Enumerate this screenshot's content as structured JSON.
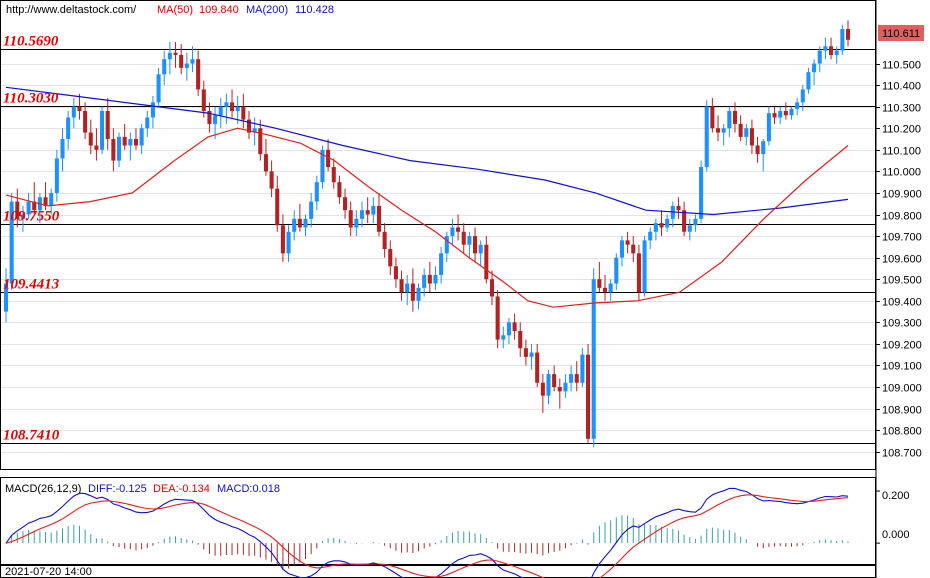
{
  "header": {
    "url": "http://www.deltastock.com/",
    "ma50_label": "MA(50)",
    "ma50_value": "109.840",
    "ma200_label": "MA(200)",
    "ma200_value": "110.428"
  },
  "macd_header": {
    "label": "MACD(26,12,9)",
    "diff": "DIFF:-0.125",
    "dea": "DEA:-0.134",
    "macd": "MACD:0.018"
  },
  "colors": {
    "up": "#1e90ff",
    "down": "#b22222",
    "ma50": "#e02020",
    "ma200": "#1010d0",
    "level": "#e00000",
    "price_badge": "#e06060"
  },
  "timestamp": "2021-07-20 14:00",
  "chart_data": {
    "type": "candlestick",
    "price_axis": {
      "ylim": [
        108.62,
        110.79
      ],
      "ticks": [
        "110.500",
        "110.400",
        "110.300",
        "110.200",
        "110.100",
        "110.000",
        "109.900",
        "109.800",
        "109.700",
        "109.600",
        "109.500",
        "109.400",
        "109.300",
        "109.200",
        "109.100",
        "109.000",
        "108.900",
        "108.800",
        "108.700"
      ]
    },
    "current_price": "110.611",
    "levels": [
      "110.5690",
      "110.3030",
      "109.7550",
      "109.4413",
      "108.7410"
    ],
    "candles": [
      [
        109.35,
        109.55,
        109.3,
        109.48
      ],
      [
        109.48,
        109.9,
        109.45,
        109.86
      ],
      [
        109.86,
        109.92,
        109.74,
        109.78
      ],
      [
        109.78,
        109.84,
        109.72,
        109.8
      ],
      [
        109.8,
        109.9,
        109.78,
        109.86
      ],
      [
        109.86,
        109.95,
        109.8,
        109.82
      ],
      [
        109.82,
        109.9,
        109.76,
        109.88
      ],
      [
        109.88,
        109.95,
        109.82,
        109.84
      ],
      [
        109.84,
        109.92,
        109.8,
        109.9
      ],
      [
        109.9,
        110.1,
        109.86,
        110.06
      ],
      [
        110.06,
        110.2,
        110.0,
        110.15
      ],
      [
        110.15,
        110.28,
        110.1,
        110.25
      ],
      [
        110.25,
        110.34,
        110.2,
        110.3
      ],
      [
        110.3,
        110.36,
        110.24,
        110.28
      ],
      [
        110.28,
        110.32,
        110.15,
        110.18
      ],
      [
        110.18,
        110.24,
        110.08,
        110.12
      ],
      [
        110.12,
        110.2,
        110.05,
        110.1
      ],
      [
        110.1,
        110.3,
        110.08,
        110.28
      ],
      [
        110.28,
        110.34,
        110.1,
        110.15
      ],
      [
        110.15,
        110.2,
        110.0,
        110.05
      ],
      [
        110.05,
        110.18,
        110.02,
        110.16
      ],
      [
        110.16,
        110.22,
        110.1,
        110.12
      ],
      [
        110.12,
        110.18,
        110.05,
        110.15
      ],
      [
        110.15,
        110.2,
        110.1,
        110.12
      ],
      [
        110.12,
        110.22,
        110.08,
        110.2
      ],
      [
        110.2,
        110.28,
        110.16,
        110.25
      ],
      [
        110.25,
        110.35,
        110.2,
        110.32
      ],
      [
        110.32,
        110.48,
        110.3,
        110.45
      ],
      [
        110.45,
        110.56,
        110.4,
        110.52
      ],
      [
        110.52,
        110.6,
        110.45,
        110.55
      ],
      [
        110.55,
        110.6,
        110.48,
        110.54
      ],
      [
        110.54,
        110.59,
        110.45,
        110.48
      ],
      [
        110.48,
        110.55,
        110.42,
        110.5
      ],
      [
        110.5,
        110.58,
        110.46,
        110.52
      ],
      [
        110.52,
        110.56,
        110.35,
        110.38
      ],
      [
        110.38,
        110.42,
        110.25,
        110.28
      ],
      [
        110.28,
        110.32,
        110.18,
        110.22
      ],
      [
        110.22,
        110.3,
        110.15,
        110.26
      ],
      [
        110.26,
        110.34,
        110.2,
        110.3
      ],
      [
        110.3,
        110.36,
        110.22,
        110.32
      ],
      [
        110.32,
        110.38,
        110.25,
        110.28
      ],
      [
        110.28,
        110.35,
        110.22,
        110.3
      ],
      [
        110.3,
        110.36,
        110.2,
        110.24
      ],
      [
        110.24,
        110.28,
        110.15,
        110.18
      ],
      [
        110.18,
        110.25,
        110.12,
        110.2
      ],
      [
        110.2,
        110.24,
        110.05,
        110.08
      ],
      [
        110.08,
        110.15,
        109.98,
        110.0
      ],
      [
        110.0,
        110.05,
        109.88,
        109.92
      ],
      [
        109.92,
        109.98,
        109.72,
        109.75
      ],
      [
        109.75,
        109.8,
        109.58,
        109.62
      ],
      [
        109.62,
        109.75,
        109.58,
        109.72
      ],
      [
        109.72,
        109.82,
        109.68,
        109.78
      ],
      [
        109.78,
        109.85,
        109.72,
        109.74
      ],
      [
        109.74,
        109.8,
        109.7,
        109.78
      ],
      [
        109.78,
        109.9,
        109.74,
        109.86
      ],
      [
        109.86,
        109.98,
        109.82,
        109.95
      ],
      [
        109.95,
        110.12,
        109.92,
        110.1
      ],
      [
        110.1,
        110.15,
        110.0,
        110.02
      ],
      [
        110.02,
        110.06,
        109.92,
        109.95
      ],
      [
        109.95,
        109.98,
        109.85,
        109.88
      ],
      [
        109.88,
        109.92,
        109.78,
        109.82
      ],
      [
        109.82,
        109.86,
        109.7,
        109.74
      ],
      [
        109.74,
        109.82,
        109.7,
        109.78
      ],
      [
        109.78,
        109.86,
        109.74,
        109.82
      ],
      [
        109.82,
        109.88,
        109.76,
        109.8
      ],
      [
        109.8,
        109.88,
        109.76,
        109.84
      ],
      [
        109.84,
        109.9,
        109.7,
        109.72
      ],
      [
        109.72,
        109.76,
        109.6,
        109.64
      ],
      [
        109.64,
        109.68,
        109.52,
        109.56
      ],
      [
        109.56,
        109.6,
        109.46,
        109.5
      ],
      [
        109.5,
        109.54,
        109.4,
        109.44
      ],
      [
        109.44,
        109.52,
        109.38,
        109.48
      ],
      [
        109.48,
        109.55,
        109.35,
        109.4
      ],
      [
        109.4,
        109.48,
        109.36,
        109.46
      ],
      [
        109.46,
        109.55,
        109.42,
        109.52
      ],
      [
        109.52,
        109.58,
        109.44,
        109.48
      ],
      [
        109.48,
        109.56,
        109.45,
        109.52
      ],
      [
        109.52,
        109.65,
        109.48,
        109.62
      ],
      [
        109.62,
        109.72,
        109.58,
        109.7
      ],
      [
        109.7,
        109.78,
        109.66,
        109.74
      ],
      [
        109.74,
        109.8,
        109.68,
        109.72
      ],
      [
        109.72,
        109.76,
        109.62,
        109.66
      ],
      [
        109.66,
        109.72,
        109.6,
        109.7
      ],
      [
        109.7,
        109.74,
        109.58,
        109.62
      ],
      [
        109.62,
        109.68,
        109.56,
        109.66
      ],
      [
        109.66,
        109.7,
        109.48,
        109.5
      ],
      [
        109.5,
        109.54,
        109.38,
        109.42
      ],
      [
        109.42,
        109.45,
        109.18,
        109.22
      ],
      [
        109.22,
        109.28,
        109.18,
        109.24
      ],
      [
        109.24,
        109.32,
        109.2,
        109.3
      ],
      [
        109.3,
        109.34,
        109.22,
        109.26
      ],
      [
        109.26,
        109.3,
        109.14,
        109.18
      ],
      [
        109.18,
        109.22,
        109.1,
        109.14
      ],
      [
        109.14,
        109.2,
        109.08,
        109.16
      ],
      [
        109.16,
        109.2,
        109.0,
        109.02
      ],
      [
        109.02,
        109.06,
        108.88,
        108.96
      ],
      [
        108.96,
        109.08,
        108.92,
        109.06
      ],
      [
        109.06,
        109.1,
        108.98,
        109.0
      ],
      [
        109.0,
        109.04,
        108.9,
        108.98
      ],
      [
        108.98,
        109.06,
        108.95,
        109.02
      ],
      [
        109.02,
        109.1,
        108.98,
        109.06
      ],
      [
        109.06,
        109.12,
        108.98,
        109.02
      ],
      [
        109.02,
        109.18,
        109.0,
        109.15
      ],
      [
        109.15,
        109.2,
        108.74,
        108.76
      ],
      [
        108.76,
        109.55,
        108.72,
        109.5
      ],
      [
        109.5,
        109.58,
        109.44,
        109.46
      ],
      [
        109.46,
        109.52,
        109.4,
        109.44
      ],
      [
        109.44,
        109.5,
        109.4,
        109.48
      ],
      [
        109.48,
        109.62,
        109.45,
        109.6
      ],
      [
        109.6,
        109.7,
        109.56,
        109.68
      ],
      [
        109.68,
        109.72,
        109.62,
        109.66
      ],
      [
        109.66,
        109.7,
        109.58,
        109.62
      ],
      [
        109.62,
        109.66,
        109.4,
        109.44
      ],
      [
        109.44,
        109.7,
        109.42,
        109.68
      ],
      [
        109.68,
        109.74,
        109.64,
        109.72
      ],
      [
        109.72,
        109.78,
        109.68,
        109.76
      ],
      [
        109.76,
        109.82,
        109.7,
        109.74
      ],
      [
        109.74,
        109.8,
        109.72,
        109.78
      ],
      [
        109.78,
        109.86,
        109.74,
        109.84
      ],
      [
        109.84,
        109.88,
        109.78,
        109.82
      ],
      [
        109.82,
        109.86,
        109.7,
        109.72
      ],
      [
        109.72,
        109.78,
        109.68,
        109.75
      ],
      [
        109.75,
        109.8,
        109.72,
        109.78
      ],
      [
        109.78,
        110.05,
        109.76,
        110.02
      ],
      [
        110.02,
        110.33,
        110.0,
        110.3
      ],
      [
        110.3,
        110.34,
        110.18,
        110.2
      ],
      [
        110.2,
        110.26,
        110.14,
        110.18
      ],
      [
        110.18,
        110.22,
        110.12,
        110.2
      ],
      [
        110.2,
        110.3,
        110.16,
        110.28
      ],
      [
        110.28,
        110.32,
        110.18,
        110.22
      ],
      [
        110.22,
        110.26,
        110.14,
        110.16
      ],
      [
        110.16,
        110.22,
        110.12,
        110.2
      ],
      [
        110.2,
        110.24,
        110.08,
        110.12
      ],
      [
        110.12,
        110.16,
        110.04,
        110.08
      ],
      [
        110.08,
        110.15,
        110.0,
        110.14
      ],
      [
        110.14,
        110.3,
        110.12,
        110.27
      ],
      [
        110.27,
        110.3,
        110.22,
        110.25
      ],
      [
        110.25,
        110.3,
        110.22,
        110.28
      ],
      [
        110.28,
        110.32,
        110.24,
        110.26
      ],
      [
        110.26,
        110.3,
        110.24,
        110.29
      ],
      [
        110.29,
        110.34,
        110.26,
        110.32
      ],
      [
        110.32,
        110.4,
        110.28,
        110.38
      ],
      [
        110.38,
        110.48,
        110.36,
        110.46
      ],
      [
        110.46,
        110.52,
        110.4,
        110.5
      ],
      [
        110.5,
        110.58,
        110.46,
        110.56
      ],
      [
        110.56,
        110.62,
        110.52,
        110.58
      ],
      [
        110.58,
        110.62,
        110.52,
        110.54
      ],
      [
        110.54,
        110.58,
        110.5,
        110.56
      ],
      [
        110.56,
        110.68,
        110.54,
        110.66
      ],
      [
        110.66,
        110.7,
        110.58,
        110.61
      ]
    ],
    "ma50": [
      [
        0,
        109.89
      ],
      [
        10,
        109.84
      ],
      [
        20,
        109.86
      ],
      [
        30,
        109.9
      ],
      [
        40,
        110.05
      ],
      [
        48,
        110.16
      ],
      [
        55,
        110.2
      ],
      [
        62,
        110.17
      ],
      [
        70,
        110.13
      ],
      [
        78,
        110.05
      ],
      [
        86,
        109.93
      ],
      [
        94,
        109.82
      ],
      [
        102,
        109.72
      ],
      [
        110,
        109.6
      ],
      [
        118,
        109.49
      ],
      [
        124,
        109.4
      ],
      [
        130,
        109.37
      ],
      [
        140,
        109.39
      ],
      [
        150,
        109.4
      ],
      [
        160,
        109.44
      ],
      [
        170,
        109.58
      ],
      [
        180,
        109.78
      ],
      [
        190,
        109.96
      ],
      [
        200,
        110.12
      ]
    ],
    "ma200": [
      [
        0,
        110.39
      ],
      [
        20,
        110.35
      ],
      [
        40,
        110.31
      ],
      [
        60,
        110.27
      ],
      [
        80,
        110.2
      ],
      [
        100,
        110.12
      ],
      [
        120,
        110.05
      ],
      [
        140,
        110.01
      ],
      [
        160,
        109.96
      ],
      [
        175,
        109.9
      ],
      [
        190,
        109.82
      ],
      [
        210,
        109.8
      ],
      [
        230,
        109.83
      ],
      [
        250,
        109.87
      ]
    ],
    "macd_panel": {
      "ylim": [
        -0.08,
        0.25
      ],
      "ticks": [
        "0.200",
        "0.000"
      ]
    }
  }
}
